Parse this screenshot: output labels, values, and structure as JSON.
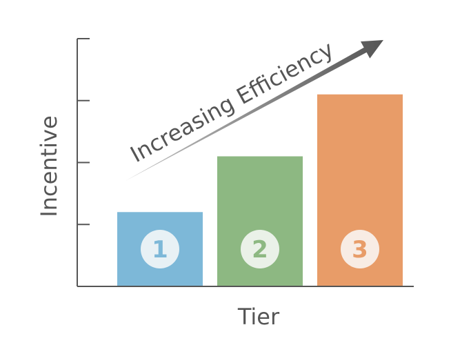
{
  "chart_data": {
    "type": "bar",
    "categories": [
      "1",
      "2",
      "3"
    ],
    "values": [
      1.2,
      2.1,
      3.1
    ],
    "ylim": [
      0,
      4
    ],
    "y_ticks": 4,
    "xlabel": "Tier",
    "ylabel": "Incentive",
    "annotation": "Increasing Efficiency",
    "grid": false,
    "bar_colors": [
      "#7db8d8",
      "#8db882",
      "#e89c68"
    ],
    "badge_fill": "#fafafa",
    "axis_color": "#555555",
    "arrow_color": "#555555"
  }
}
